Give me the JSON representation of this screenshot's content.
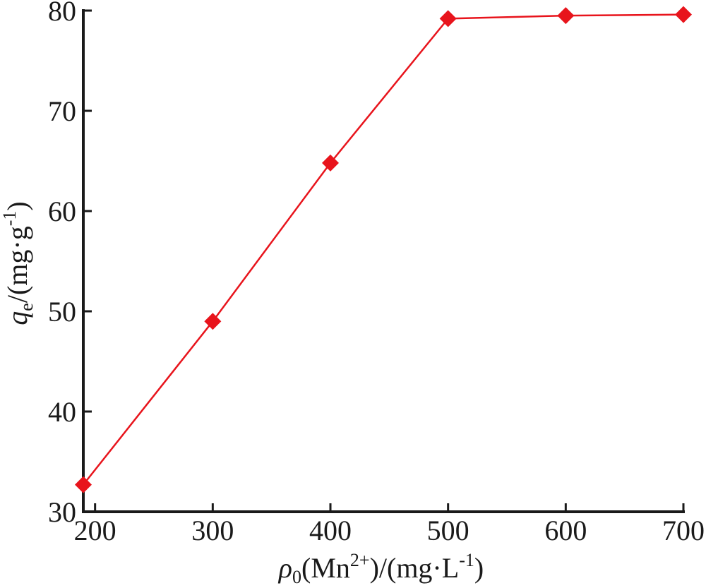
{
  "chart_data": {
    "type": "line",
    "title": "",
    "xlabel": {
      "symbol": "ρ",
      "sub": "0",
      "ion": "(Mn",
      "ion_sup": "2+",
      "unit": ")/(mg·L",
      "unit_sup": "-1",
      "close": ")"
    },
    "ylabel": {
      "symbol": "q",
      "sub": "e",
      "unit": "/(mg·g",
      "unit_sup": "-1",
      "close": ")"
    },
    "xlim": [
      190,
      700
    ],
    "ylim": [
      30,
      80
    ],
    "xticks": [
      200,
      300,
      400,
      500,
      600,
      700
    ],
    "yticks": [
      30,
      40,
      50,
      60,
      70,
      80
    ],
    "grid": false,
    "series": [
      {
        "color": "#e8141c",
        "marker": "diamond",
        "x": [
          190,
          300,
          400,
          500,
          600,
          700
        ],
        "y": [
          32.7,
          49.0,
          64.8,
          79.2,
          79.5,
          79.6
        ]
      }
    ]
  }
}
